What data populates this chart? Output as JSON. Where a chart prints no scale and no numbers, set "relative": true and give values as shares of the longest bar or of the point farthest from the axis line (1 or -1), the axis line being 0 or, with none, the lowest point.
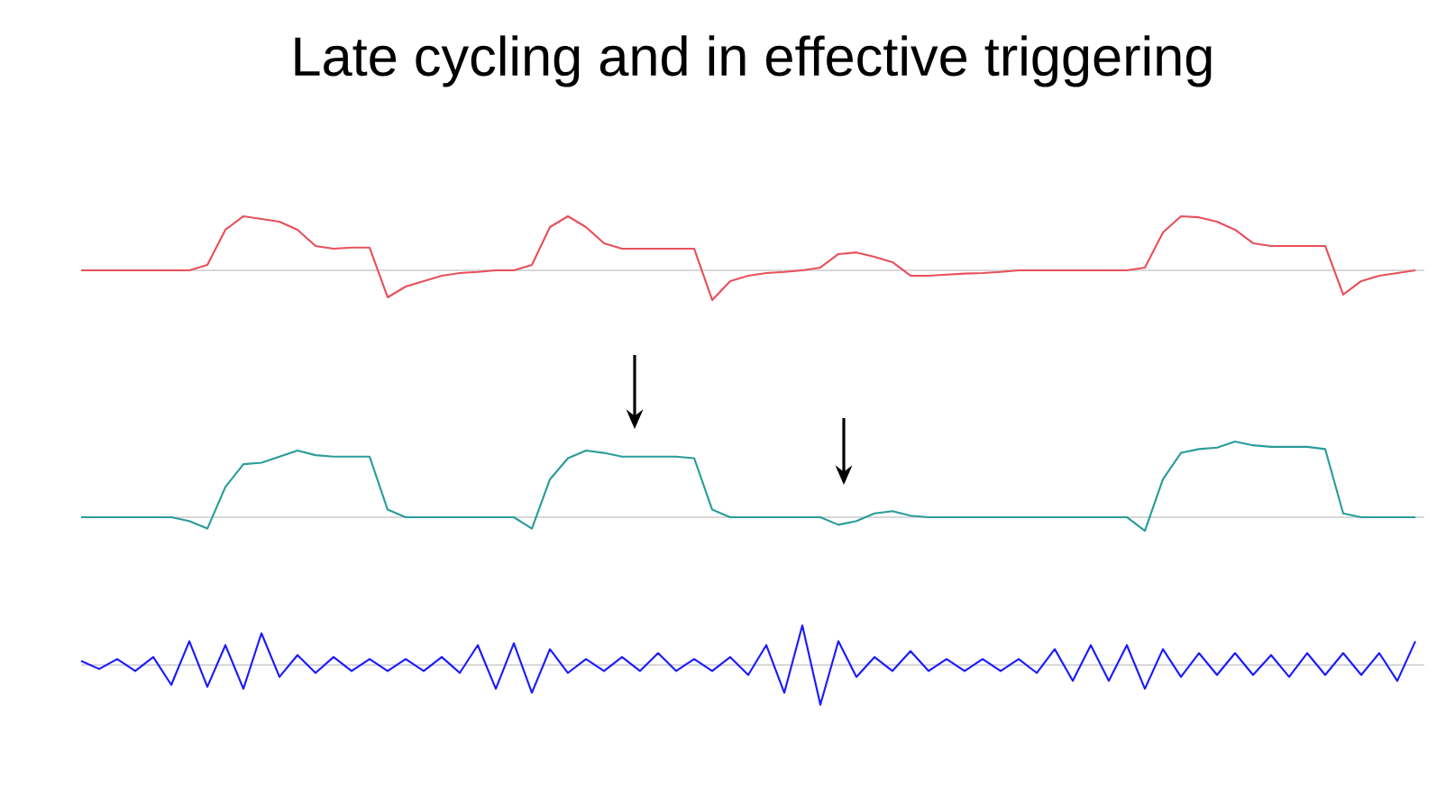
{
  "chart_data": [
    {
      "type": "line",
      "title": "Late cycling and in effective triggering",
      "relative": true,
      "categories": [
        null,
        null,
        null,
        null,
        null,
        null,
        null,
        null,
        null,
        null,
        null,
        null,
        null,
        null,
        null,
        null,
        null,
        null,
        null,
        null,
        null,
        null,
        null,
        null,
        null,
        null,
        null,
        null,
        null,
        null,
        null,
        null,
        null,
        null,
        null,
        null,
        null,
        null,
        null,
        null,
        null,
        null,
        null,
        null,
        null,
        null,
        null,
        null,
        null,
        null,
        null,
        null,
        null,
        null,
        null,
        null,
        null,
        null,
        null,
        null,
        null,
        null,
        null,
        null,
        null,
        null,
        null,
        null,
        null,
        null,
        null,
        null,
        null,
        null,
        null
      ],
      "series": [
        {
          "color": "#e8505b",
          "values": [
            0,
            0,
            0,
            0,
            0,
            0,
            0,
            0.1,
            0.75,
            1.0,
            0.95,
            0.9,
            0.75,
            0.45,
            0.4,
            0.42,
            0.42,
            -0.5,
            -0.3,
            -0.2,
            -0.1,
            -0.05,
            -0.03,
            0,
            0,
            0.1,
            0.8,
            1.0,
            0.8,
            0.5,
            0.4,
            0.4,
            0.4,
            0.4,
            0.4,
            -0.55,
            -0.2,
            -0.1,
            -0.05,
            -0.03,
            0,
            0.05,
            0.3,
            0.33,
            0.25,
            0.15,
            -0.1,
            -0.1,
            -0.08,
            -0.06,
            -0.05,
            -0.03,
            0,
            0,
            0,
            0,
            0,
            0,
            0,
            0.05,
            0.7,
            1.0,
            0.98,
            0.9,
            0.75,
            0.5,
            0.45,
            0.45,
            0.45,
            0.45,
            -0.45,
            -0.2,
            -0.1,
            -0.05,
            0
          ]
        }
      ]
    },
    {
      "type": "line",
      "relative": true,
      "categories": [
        null,
        null,
        null,
        null,
        null,
        null,
        null,
        null,
        null,
        null,
        null,
        null,
        null,
        null,
        null,
        null,
        null,
        null,
        null,
        null,
        null,
        null,
        null,
        null,
        null,
        null,
        null,
        null,
        null,
        null,
        null,
        null,
        null,
        null,
        null,
        null,
        null,
        null,
        null,
        null,
        null,
        null,
        null,
        null,
        null,
        null,
        null,
        null,
        null,
        null,
        null,
        null,
        null,
        null,
        null,
        null,
        null,
        null,
        null,
        null,
        null,
        null,
        null,
        null,
        null,
        null,
        null,
        null,
        null,
        null,
        null,
        null,
        null,
        null,
        null
      ],
      "series": [
        {
          "color": "#2a9d9a",
          "values": [
            0,
            0,
            0,
            0,
            0,
            0,
            -0.05,
            -0.15,
            0.4,
            0.7,
            0.72,
            0.8,
            0.88,
            0.82,
            0.8,
            0.8,
            0.8,
            0.1,
            0,
            0,
            0,
            0,
            0,
            0,
            0,
            -0.15,
            0.5,
            0.78,
            0.88,
            0.85,
            0.8,
            0.8,
            0.8,
            0.8,
            0.78,
            0.1,
            0,
            0,
            0,
            0,
            0,
            0,
            -0.1,
            -0.05,
            0.05,
            0.08,
            0.02,
            0,
            0,
            0,
            0,
            0,
            0,
            0,
            0,
            0,
            0,
            0,
            0,
            -0.18,
            0.5,
            0.85,
            0.9,
            0.92,
            1.0,
            0.95,
            0.93,
            0.93,
            0.93,
            0.9,
            0.05,
            0,
            0,
            0,
            0
          ]
        }
      ]
    },
    {
      "type": "line",
      "relative": true,
      "categories": [
        null,
        null,
        null,
        null,
        null,
        null,
        null,
        null,
        null,
        null,
        null,
        null,
        null,
        null,
        null,
        null,
        null,
        null,
        null,
        null,
        null,
        null,
        null,
        null,
        null,
        null,
        null,
        null,
        null,
        null,
        null,
        null,
        null,
        null,
        null,
        null,
        null,
        null,
        null,
        null,
        null,
        null,
        null,
        null,
        null,
        null,
        null,
        null,
        null,
        null,
        null,
        null,
        null,
        null,
        null,
        null,
        null,
        null,
        null,
        null,
        null,
        null,
        null,
        null,
        null,
        null,
        null,
        null,
        null,
        null,
        null,
        null,
        null,
        null,
        null
      ],
      "series": [
        {
          "color": "#1a1aff",
          "values": [
            0.1,
            -0.1,
            0.15,
            -0.15,
            0.2,
            -0.5,
            0.6,
            -0.55,
            0.5,
            -0.6,
            0.8,
            -0.3,
            0.25,
            -0.2,
            0.2,
            -0.15,
            0.15,
            -0.15,
            0.15,
            -0.15,
            0.2,
            -0.2,
            0.5,
            -0.6,
            0.55,
            -0.7,
            0.4,
            -0.2,
            0.15,
            -0.15,
            0.2,
            -0.15,
            0.3,
            -0.15,
            0.15,
            -0.15,
            0.2,
            -0.25,
            0.5,
            -0.7,
            1.0,
            -1.0,
            0.6,
            -0.3,
            0.2,
            -0.15,
            0.35,
            -0.15,
            0.15,
            -0.15,
            0.15,
            -0.15,
            0.15,
            -0.2,
            0.4,
            -0.4,
            0.5,
            -0.4,
            0.5,
            -0.6,
            0.4,
            -0.3,
            0.3,
            -0.25,
            0.3,
            -0.25,
            0.25,
            -0.3,
            0.3,
            -0.25,
            0.3,
            -0.25,
            0.3,
            -0.4,
            0.6
          ]
        }
      ]
    }
  ]
}
